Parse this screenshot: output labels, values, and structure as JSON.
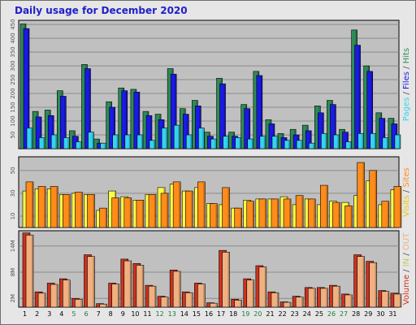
{
  "chart_data": {
    "type": "bar",
    "title": "Daily usage for December 2020",
    "x": [
      "1",
      "2",
      "3",
      "4",
      "5",
      "6",
      "7",
      "8",
      "9",
      "10",
      "11",
      "12",
      "13",
      "14",
      "15",
      "16",
      "17",
      "18",
      "19",
      "20",
      "21",
      "22",
      "23",
      "24",
      "25",
      "26",
      "27",
      "28",
      "29",
      "30",
      "31"
    ],
    "weekend_days": [
      "5",
      "6",
      "12",
      "13",
      "19",
      "20",
      "26",
      "27"
    ],
    "colors": {
      "hits": "#2e8b57",
      "files": "#1a1ae6",
      "pages": "#35d3f0",
      "visits": "#ffff44",
      "sites": "#ff8c1a",
      "kbin": "#d0321e",
      "kbout": "#f0b080",
      "weekday_label": "#000000",
      "weekend_label": "#1a7a3a",
      "panel_bg": "#c0c0c0",
      "grid": "#8c8c8c"
    },
    "panels": [
      {
        "name": "hits-files-pages",
        "ylim": [
          0,
          465
        ],
        "yticks": [
          "50",
          "100",
          "150",
          "200",
          "250",
          "300",
          "350",
          "400",
          "450"
        ],
        "right_label": [
          {
            "text": "Pages",
            "color": "#35d3f0"
          },
          {
            "text": " / ",
            "color": "#555555"
          },
          {
            "text": "Files",
            "color": "#1a1ae6"
          },
          {
            "text": " / ",
            "color": "#555555"
          },
          {
            "text": "Hits",
            "color": "#2e8b57"
          }
        ],
        "series": [
          {
            "name": "Hits",
            "color_key": "hits",
            "values": [
              452,
              135,
              140,
              210,
              65,
              305,
              35,
              170,
              220,
              215,
              135,
              125,
              290,
              145,
              175,
              60,
              255,
              60,
              160,
              280,
              105,
              55,
              70,
              85,
              155,
              175,
              70,
              430,
              300,
              130,
              110
            ]
          },
          {
            "name": "Files",
            "color_key": "files",
            "values": [
              435,
              115,
              120,
              190,
              45,
              290,
              20,
              150,
              210,
              205,
              120,
              105,
              270,
              125,
              155,
              45,
              235,
              45,
              145,
              265,
              90,
              40,
              50,
              65,
              130,
              160,
              60,
              375,
              280,
              110,
              90
            ]
          },
          {
            "name": "Pages",
            "color_key": "pages",
            "values": [
              75,
              40,
              50,
              40,
              25,
              60,
              20,
              50,
              50,
              50,
              30,
              75,
              85,
              50,
              75,
              35,
              45,
              40,
              35,
              45,
              45,
              30,
              30,
              20,
              55,
              50,
              25,
              55,
              55,
              40,
              50
            ]
          }
        ]
      },
      {
        "name": "visits-sites",
        "ylim": [
          0,
          62
        ],
        "yticks": [
          "10",
          "30",
          "50"
        ],
        "right_label": [
          {
            "text": "Visits",
            "color": "#e8c800"
          },
          {
            "text": " / ",
            "color": "#555555"
          },
          {
            "text": "Sites",
            "color": "#ff8c1a"
          }
        ],
        "series": [
          {
            "name": "Visits",
            "color_key": "visits",
            "values": [
              32,
              34,
              34,
              29,
              30,
              29,
              15,
              32,
              27,
              24,
              29,
              35,
              38,
              32,
              35,
              21,
              20,
              17,
              24,
              25,
              25,
              27,
              20,
              25,
              20,
              23,
              22,
              28,
              41,
              20,
              33
            ]
          },
          {
            "name": "Sites",
            "color_key": "sites",
            "values": [
              40,
              36,
              36,
              29,
              31,
              29,
              17,
              26,
              26,
              24,
              29,
              30,
              40,
              32,
              40,
              21,
              35,
              17,
              23,
              25,
              25,
              25,
              28,
              25,
              37,
              22,
              19,
              57,
              50,
              23,
              36
            ]
          }
        ]
      },
      {
        "name": "volume",
        "ylim": [
          0,
          17.5
        ],
        "yticks": [
          "2M",
          "8M",
          "14M"
        ],
        "right_label": [
          {
            "text": "Volume",
            "color": "#d0321e"
          },
          {
            "text": " / ",
            "color": "#555555"
          },
          {
            "text": "IN",
            "color": "#c8c864"
          },
          {
            "text": " / ",
            "color": "#555555"
          },
          {
            "text": "OUT",
            "color": "#f0b080"
          }
        ],
        "series": [
          {
            "name": "IN",
            "color_key": "kbin",
            "values": [
              17.0,
              3.5,
              5.5,
              6.5,
              2.0,
              12.0,
              0.8,
              5.5,
              11.0,
              10.0,
              5.0,
              2.5,
              8.5,
              3.5,
              5.5,
              1.0,
              13.0,
              1.8,
              6.5,
              9.5,
              3.5,
              1.2,
              2.5,
              4.5,
              4.5,
              5.0,
              3.0,
              12.0,
              10.5,
              3.8,
              3.2
            ]
          },
          {
            "name": "OUT",
            "color_key": "kbout",
            "values": [
              16.5,
              3.2,
              5.2,
              6.2,
              1.8,
              11.6,
              0.7,
              5.3,
              10.6,
              9.6,
              4.8,
              2.3,
              8.2,
              3.3,
              5.3,
              0.9,
              12.6,
              1.6,
              6.2,
              9.2,
              3.3,
              1.1,
              2.3,
              4.3,
              4.3,
              4.8,
              2.8,
              11.6,
              10.2,
              3.6,
              3.0
            ]
          }
        ]
      }
    ]
  }
}
